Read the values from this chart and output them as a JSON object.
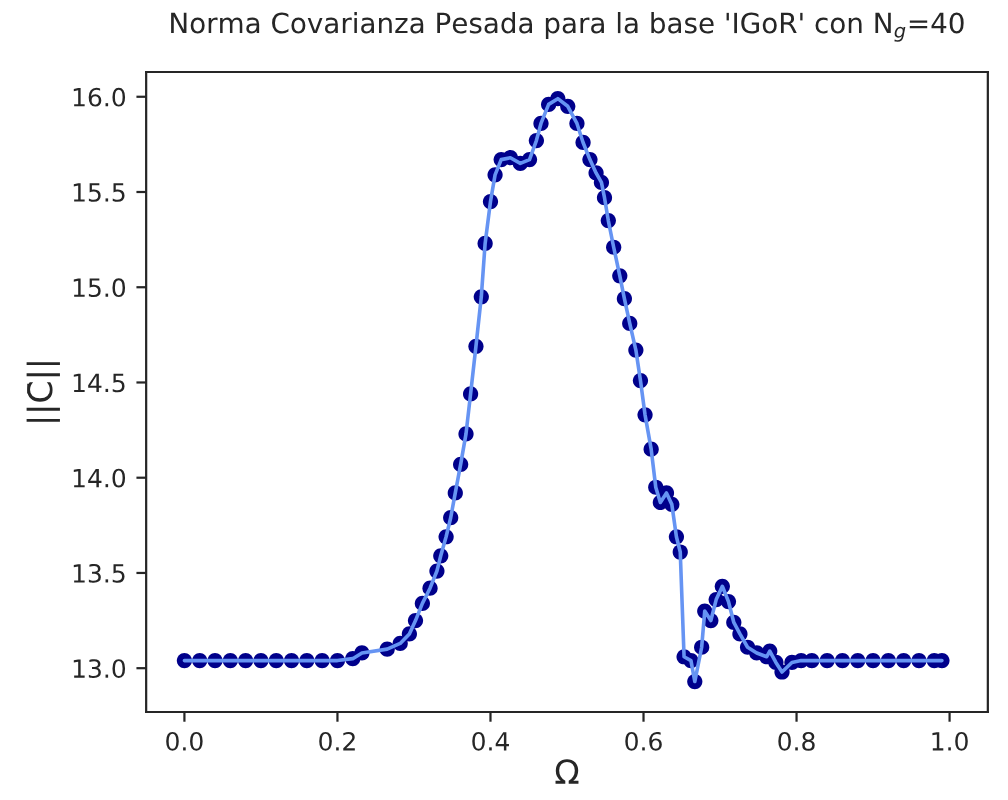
{
  "chart_data": {
    "type": "line",
    "title": "Norma Covarianza Pesada para la base 'IGoR' con N$_{g}$=40",
    "xlabel": "Ω",
    "ylabel": "||C̄||",
    "x": [
      0,
      0.02,
      0.04,
      0.06,
      0.08,
      0.1,
      0.12,
      0.14,
      0.16,
      0.18,
      0.2,
      0.22,
      0.232,
      0.265,
      0.282,
      0.294,
      0.302,
      0.311,
      0.321,
      0.33,
      0.335,
      0.342,
      0.348,
      0.354,
      0.361,
      0.368,
      0.374,
      0.381,
      0.388,
      0.393,
      0.4,
      0.406,
      0.414,
      0.426,
      0.439,
      0.451,
      0.46,
      0.466,
      0.476,
      0.488,
      0.501,
      0.513,
      0.521,
      0.53,
      0.538,
      0.545,
      0.549,
      0.554,
      0.561,
      0.569,
      0.575,
      0.582,
      0.59,
      0.596,
      0.602,
      0.61,
      0.616,
      0.622,
      0.63,
      0.637,
      0.643,
      0.648,
      0.653,
      0.662,
      0.667,
      0.676,
      0.68,
      0.688,
      0.695,
      0.703,
      0.711,
      0.718,
      0.726,
      0.736,
      0.748,
      0.761,
      0.765,
      0.773,
      0.781,
      0.794,
      0.806,
      0.82,
      0.84,
      0.86,
      0.88,
      0.9,
      0.92,
      0.94,
      0.96,
      0.98,
      0.99
    ],
    "series": [
      {
        "color": "#00008b",
        "values": [
          13.04,
          13.04,
          13.04,
          13.04,
          13.04,
          13.04,
          13.04,
          13.04,
          13.04,
          13.04,
          13.04,
          13.05,
          13.08,
          13.1,
          13.13,
          13.18,
          13.25,
          13.34,
          13.42,
          13.51,
          13.59,
          13.69,
          13.79,
          13.92,
          14.07,
          14.23,
          14.44,
          14.69,
          14.95,
          15.23,
          15.45,
          15.59,
          15.67,
          15.68,
          15.65,
          15.67,
          15.77,
          15.86,
          15.96,
          15.99,
          15.95,
          15.86,
          15.76,
          15.67,
          15.6,
          15.55,
          15.47,
          15.35,
          15.21,
          15.06,
          14.94,
          14.81,
          14.67,
          14.51,
          14.33,
          14.15,
          13.95,
          13.87,
          13.92,
          13.86,
          13.69,
          13.61,
          13.06,
          13.04,
          12.93,
          13.11,
          13.3,
          13.25,
          13.36,
          13.43,
          13.35,
          13.24,
          13.18,
          13.11,
          13.08,
          13.06,
          13.09,
          13.03,
          12.98,
          13.03,
          13.04,
          13.04,
          13.04,
          13.04,
          13.04,
          13.04,
          13.04,
          13.04,
          13.04,
          13.04,
          13.04
        ]
      }
    ],
    "xlim": [
      -0.05,
      1.05
    ],
    "ylim": [
      12.77,
      16.13
    ],
    "xticks": [
      {
        "value": 0,
        "label": "0.0"
      },
      0.2,
      0.4,
      0.6,
      0.8,
      {
        "value": 1,
        "label": "1.0"
      }
    ],
    "yticks": [
      {
        "value": 13,
        "label": "13.0"
      },
      13.5,
      {
        "value": 14,
        "label": "14.0"
      },
      14.5,
      {
        "value": 15,
        "label": "15.0"
      },
      15.5,
      {
        "value": 16,
        "label": "16.0"
      }
    ],
    "marker": "circle",
    "grid": false,
    "legend": false
  }
}
